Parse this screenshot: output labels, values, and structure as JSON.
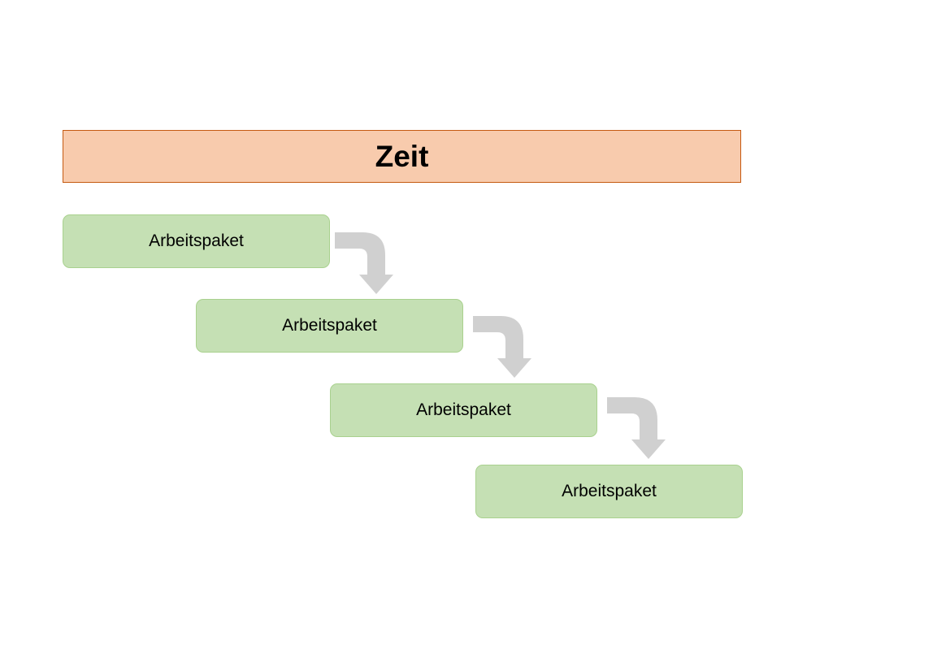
{
  "header": {
    "label": "Zeit",
    "fill_color": "#f8cbad",
    "border_color": "#c55a11"
  },
  "work_packages": [
    {
      "label": "Arbeitspaket"
    },
    {
      "label": "Arbeitspaket"
    },
    {
      "label": "Arbeitspaket"
    },
    {
      "label": "Arbeitspaket"
    }
  ],
  "style": {
    "package_fill": "#c5e0b4",
    "package_border": "#a9d18e",
    "arrow_color": "#d0d0d0"
  },
  "arrows": [
    {
      "icon": "bent-arrow-down-icon",
      "from": 1,
      "to": 2
    },
    {
      "icon": "bent-arrow-down-icon",
      "from": 2,
      "to": 3
    },
    {
      "icon": "bent-arrow-down-icon",
      "from": 3,
      "to": 4
    }
  ]
}
